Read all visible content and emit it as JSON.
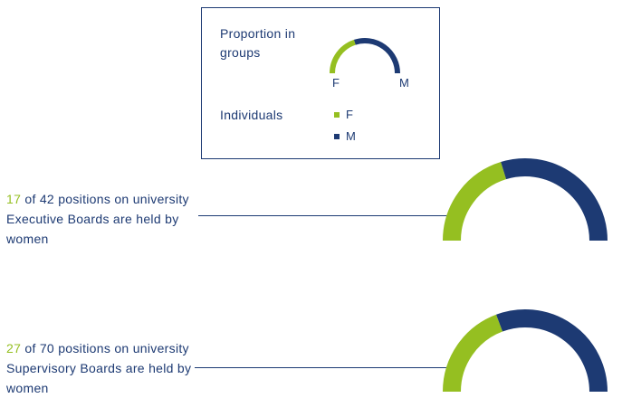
{
  "colors": {
    "female": "#95bf21",
    "male": "#1d3a73",
    "text": "#1d3a73"
  },
  "legend": {
    "proportion_title": "Proportion in groups",
    "individuals_title": "Individuals",
    "f_label": "F",
    "m_label": "M",
    "female_label": "F",
    "male_label": "M"
  },
  "chart_data": [
    {
      "type": "pie",
      "categories": [
        "F",
        "M"
      ],
      "values": [
        17,
        25
      ],
      "total": 42,
      "text": {
        "highlight": "17",
        "rest": " of 42 positions on university Executive Boards are held by women"
      }
    },
    {
      "type": "pie",
      "categories": [
        "F",
        "M"
      ],
      "values": [
        27,
        43
      ],
      "total": 70,
      "text": {
        "highlight": "27",
        "rest": " of 70 positions on university Supervisory Boards are held by women"
      }
    }
  ]
}
